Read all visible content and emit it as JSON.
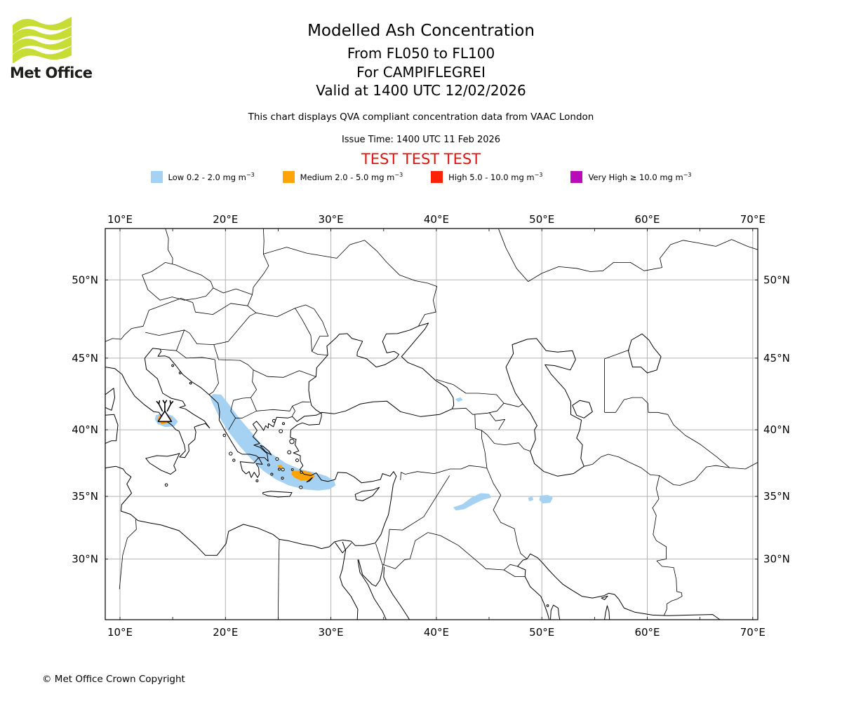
{
  "header": {
    "brand": "Met Office",
    "logo_green": "#c7dc35",
    "title": "Modelled Ash Concentration",
    "subtitle_flight_levels": "From FL050 to FL100",
    "subtitle_volcano": "For CAMPIFLEGREI",
    "subtitle_valid_time": "Valid at 1400 UTC 12/02/2026",
    "description": "This chart displays QVA compliant concentration data from VAAC London",
    "issue_time": "Issue Time: 1400 UTC 11 Feb 2026",
    "test_banner": "TEST TEST TEST",
    "test_banner_color": "#e11212"
  },
  "legend": {
    "items": [
      {
        "level": "low",
        "label": "Low 0.2 - 2.0 mg m",
        "sup": "−3",
        "color": "#a5d2f3"
      },
      {
        "level": "medium",
        "label": "Medium 2.0 - 5.0 mg m",
        "sup": "−3",
        "color": "#ffa408"
      },
      {
        "level": "high",
        "label": "High 5.0 - 10.0 mg m",
        "sup": "−3",
        "color": "#fe2204"
      },
      {
        "level": "very_high",
        "label": "Very High ≥ 10.0 mg m",
        "sup": "−3",
        "color": "#b70cb7"
      }
    ]
  },
  "map": {
    "grid_color": "#b3b3b3",
    "lon_ticks": [
      {
        "deg": 10,
        "label": "10°E"
      },
      {
        "deg": 20,
        "label": "20°E"
      },
      {
        "deg": 30,
        "label": "30°E"
      },
      {
        "deg": 40,
        "label": "40°E"
      },
      {
        "deg": 50,
        "label": "50°E"
      },
      {
        "deg": 60,
        "label": "60°E"
      },
      {
        "deg": 70,
        "label": "70°E"
      }
    ],
    "lat_ticks": [
      {
        "deg": 50,
        "label": "50°N"
      },
      {
        "deg": 45,
        "label": "45°N"
      },
      {
        "deg": 40,
        "label": "40°N"
      },
      {
        "deg": 35,
        "label": "35°N"
      },
      {
        "deg": 30,
        "label": "30°N"
      }
    ],
    "volcano": {
      "name": "CAMPIFLEGREI",
      "lon": 14.25,
      "lat": 40.95
    },
    "plumes": [
      {
        "level": "low",
        "polys": [
          [
            [
              13.4,
              41.05
            ],
            [
              14.2,
              41.2
            ],
            [
              15.0,
              41.0
            ],
            [
              15.5,
              40.6
            ],
            [
              15.15,
              40.25
            ],
            [
              14.3,
              40.2
            ],
            [
              13.6,
              40.4
            ],
            [
              13.3,
              40.75
            ]
          ],
          [
            [
              18.85,
              42.55
            ],
            [
              19.6,
              42.5
            ],
            [
              20.3,
              41.85
            ],
            [
              21.2,
              40.95
            ],
            [
              22.3,
              39.95
            ],
            [
              23.3,
              39.05
            ],
            [
              24.45,
              38.2
            ],
            [
              25.7,
              37.55
            ],
            [
              27.0,
              37.1
            ],
            [
              28.4,
              36.85
            ],
            [
              29.6,
              36.55
            ],
            [
              30.3,
              36.2
            ],
            [
              30.45,
              35.85
            ],
            [
              29.85,
              35.55
            ],
            [
              28.8,
              35.45
            ],
            [
              27.4,
              35.55
            ],
            [
              26.0,
              35.85
            ],
            [
              24.8,
              36.3
            ],
            [
              23.6,
              36.95
            ],
            [
              22.5,
              37.8
            ],
            [
              21.35,
              38.8
            ],
            [
              20.25,
              39.9
            ],
            [
              19.35,
              41.0
            ],
            [
              18.75,
              41.95
            ],
            [
              18.55,
              42.35
            ]
          ],
          [
            [
              41.8,
              42.2
            ],
            [
              42.3,
              42.32
            ],
            [
              42.5,
              42.12
            ],
            [
              42.05,
              42.0
            ]
          ],
          [
            [
              41.6,
              34.15
            ],
            [
              42.5,
              34.4
            ],
            [
              43.3,
              34.9
            ],
            [
              44.2,
              35.25
            ],
            [
              45.0,
              35.2
            ],
            [
              45.2,
              34.9
            ],
            [
              44.45,
              34.75
            ],
            [
              43.55,
              34.4
            ],
            [
              42.65,
              34.0
            ],
            [
              41.85,
              33.9
            ]
          ],
          [
            [
              48.7,
              34.9
            ],
            [
              49.1,
              34.98
            ],
            [
              49.2,
              34.72
            ],
            [
              48.8,
              34.62
            ]
          ],
          [
            [
              49.85,
              35.05
            ],
            [
              50.55,
              35.12
            ],
            [
              51.05,
              34.9
            ],
            [
              50.8,
              34.5
            ],
            [
              50.1,
              34.45
            ],
            [
              49.75,
              34.72
            ]
          ]
        ]
      },
      {
        "level": "medium",
        "polys": [
          [
            [
              13.7,
              41.0
            ],
            [
              14.45,
              41.1
            ],
            [
              14.9,
              40.85
            ],
            [
              14.65,
              40.5
            ],
            [
              13.95,
              40.4
            ],
            [
              13.55,
              40.7
            ]
          ],
          [
            [
              26.35,
              36.95
            ],
            [
              27.2,
              37.0
            ],
            [
              28.05,
              36.85
            ],
            [
              28.5,
              36.55
            ],
            [
              28.15,
              36.25
            ],
            [
              27.2,
              36.2
            ],
            [
              26.55,
              36.45
            ],
            [
              26.25,
              36.7
            ]
          ],
          [
            [
              24.95,
              37.35
            ],
            [
              25.3,
              37.42
            ],
            [
              25.45,
              37.2
            ],
            [
              25.1,
              37.1
            ]
          ]
        ]
      },
      {
        "level": "high",
        "polys": [
          [
            [
              13.85,
              40.95
            ],
            [
              14.4,
              41.0
            ],
            [
              14.7,
              40.8
            ],
            [
              14.4,
              40.55
            ],
            [
              13.95,
              40.55
            ],
            [
              13.75,
              40.75
            ]
          ]
        ]
      },
      {
        "level": "very_high",
        "polys": [
          [
            [
              14.05,
              40.9
            ],
            [
              14.35,
              40.93
            ],
            [
              14.45,
              40.8
            ],
            [
              14.2,
              40.7
            ],
            [
              14.0,
              40.78
            ]
          ]
        ]
      }
    ]
  },
  "footer": {
    "copyright": "© Met Office Crown Copyright"
  }
}
